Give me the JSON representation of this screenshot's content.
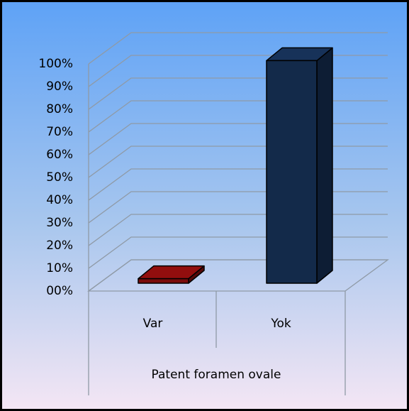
{
  "chart_data": {
    "type": "bar3d",
    "categories": [
      "Var",
      "Yok"
    ],
    "values": [
      2,
      98
    ],
    "colors": [
      "#7a0c0c",
      "#132a4a"
    ],
    "x_label": "Patent foramen ovale",
    "ylim": [
      0,
      100
    ],
    "yticks": [
      {
        "value": 0,
        "label": "00%"
      },
      {
        "value": 10,
        "label": "10%"
      },
      {
        "value": 20,
        "label": "20%"
      },
      {
        "value": 30,
        "label": "30%"
      },
      {
        "value": 40,
        "label": "40%"
      },
      {
        "value": 50,
        "label": "50%"
      },
      {
        "value": 60,
        "label": "60%"
      },
      {
        "value": 70,
        "label": "70%"
      },
      {
        "value": 80,
        "label": "80%"
      },
      {
        "value": 90,
        "label": "90%"
      },
      {
        "value": 100,
        "label": "100%"
      }
    ],
    "grid": true
  }
}
